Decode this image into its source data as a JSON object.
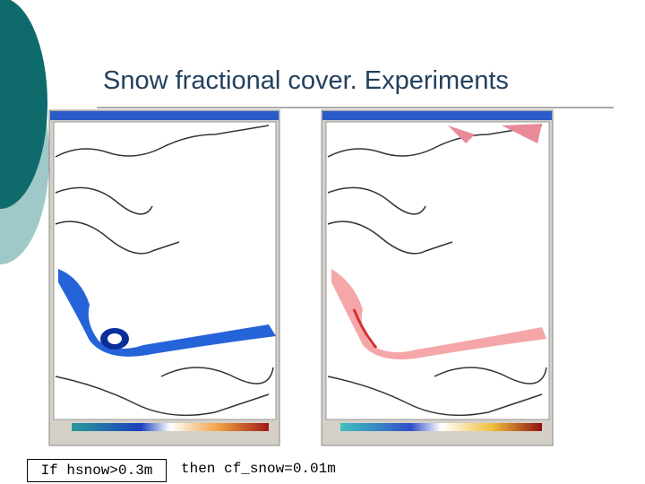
{
  "header": {
    "title": "Snow fractional cover. Experiments"
  },
  "caption": {
    "condition": "If hsnow>0.3m",
    "result": "then cf_snow=0.01m"
  }
}
